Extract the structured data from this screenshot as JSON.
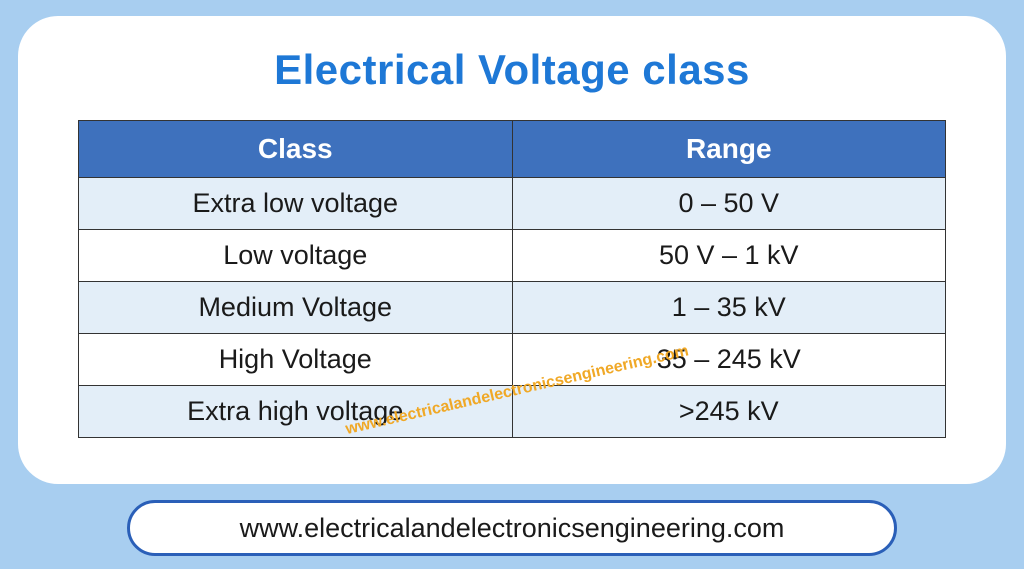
{
  "colors": {
    "page_bg": "#a8cef0",
    "card_bg": "#ffffff",
    "title": "#1e78d6",
    "header_bg": "#3e71bd",
    "header_text": "#ffffff",
    "row_odd_bg": "#e3eef8",
    "row_even_bg": "#ffffff",
    "cell_border": "#333333",
    "cell_text": "#1a1a1a",
    "watermark": "#f0a826",
    "pill_border": "#2a5fb8",
    "pill_bg": "#ffffff",
    "pill_text": "#1a1a1a"
  },
  "title": "Electrical Voltage class",
  "table": {
    "columns": [
      "Class",
      "Range"
    ],
    "rows": [
      [
        "Extra low voltage",
        "0 – 50 V"
      ],
      [
        "Low voltage",
        "50 V – 1 kV"
      ],
      [
        "Medium Voltage",
        "1 – 35 kV"
      ],
      [
        "High Voltage",
        "35 – 245 kV"
      ],
      [
        "Extra high voltage",
        ">245 kV"
      ]
    ]
  },
  "watermark_text": "www.electricalandelectronicsengineering.com",
  "footer_text": "www.electricalandelectronicsengineering.com"
}
